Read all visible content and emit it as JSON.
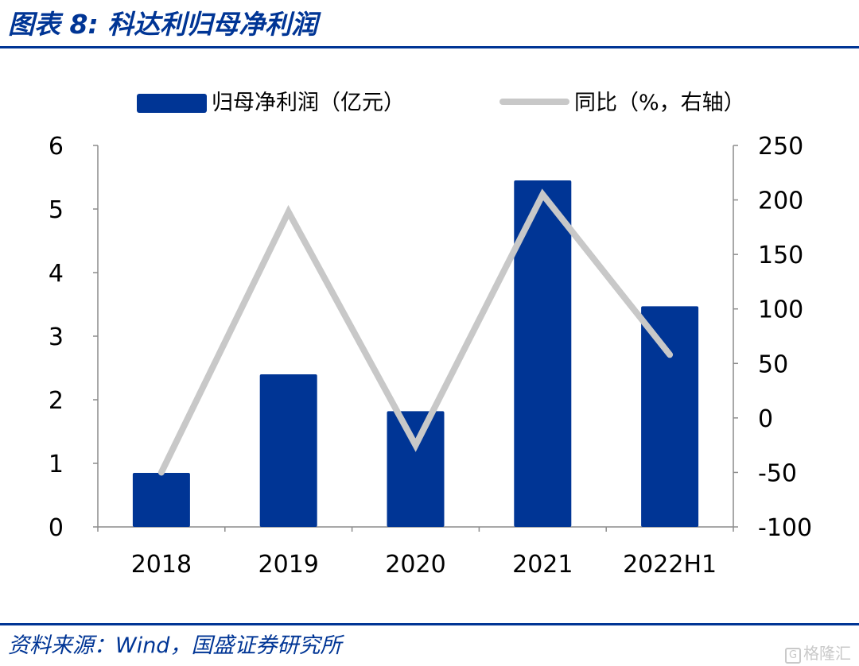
{
  "header": {
    "title": "图表 8:  科达利归母净利润"
  },
  "chart_data": {
    "type": "bar",
    "categories": [
      "2018",
      "2019",
      "2020",
      "2021",
      "2022H1"
    ],
    "series": [
      {
        "name": "归母净利润（亿元）",
        "type": "bar",
        "axis": "left",
        "values": [
          0.85,
          2.4,
          1.82,
          5.45,
          3.47
        ],
        "color": "#003595"
      },
      {
        "name": "同比（%，右轴）",
        "type": "line",
        "axis": "right",
        "values": [
          -50,
          189,
          -25,
          205,
          58
        ],
        "color": "#c8c8c8"
      }
    ],
    "y_left": {
      "min": 0,
      "max": 6,
      "ticks": [
        "0",
        "1",
        "2",
        "3",
        "4",
        "5",
        "6"
      ]
    },
    "y_right": {
      "min": -100,
      "max": 250,
      "ticks": [
        "-100",
        "-50",
        "0",
        "50",
        "100",
        "150",
        "200",
        "250"
      ]
    },
    "legend_position": "top",
    "grid": false
  },
  "footer": {
    "source": "资料来源：Wind，国盛证券研究所",
    "watermark": "格隆汇",
    "watermark_icon": "G"
  }
}
